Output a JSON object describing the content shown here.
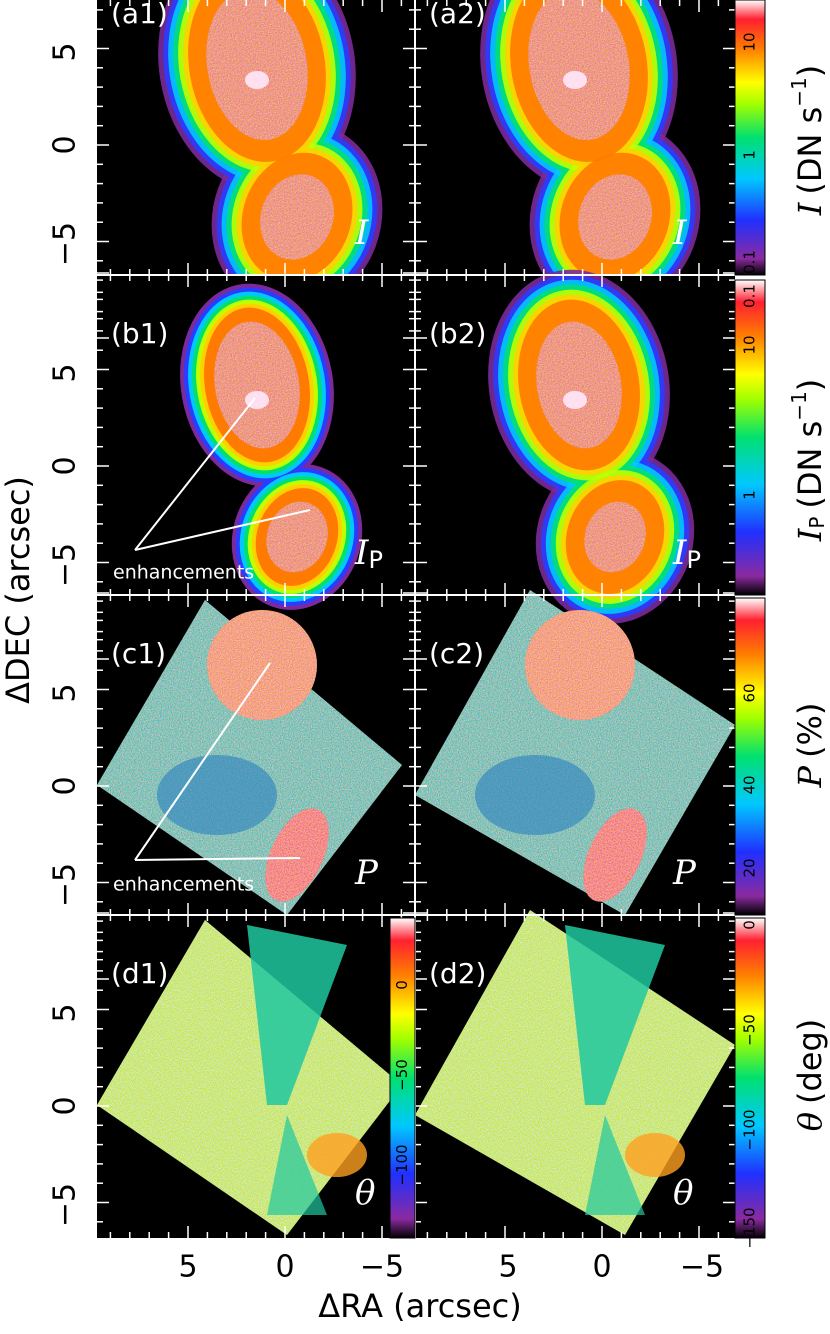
{
  "axes": {
    "x_label": "ΔRA (arcsec)",
    "y_label": "ΔDEC (arcsec)",
    "x_ticks": [
      "5",
      "0",
      "−5"
    ],
    "y_ticks": [
      "5",
      "0",
      "−5"
    ]
  },
  "panels": [
    {
      "label": "(a1)",
      "symbol": "I"
    },
    {
      "label": "(a2)",
      "symbol": "I"
    },
    {
      "label": "(b1)",
      "symbol": "I",
      "sub": "P"
    },
    {
      "label": "(b2)",
      "symbol": "I",
      "sub": "P"
    },
    {
      "label": "(c1)",
      "symbol": "P"
    },
    {
      "label": "(c2)",
      "symbol": "P"
    },
    {
      "label": "(d1)",
      "symbol": "θ"
    },
    {
      "label": "(d2)",
      "symbol": "θ"
    }
  ],
  "annotations": [
    "enhancements",
    "enhancements"
  ],
  "colorbars": [
    {
      "symbol": "I",
      "unit": "(DN s",
      "exp": "−1",
      "close": ")",
      "ticks": [
        "10",
        "1",
        "0.1"
      ]
    },
    {
      "symbol": "I",
      "sub": "P",
      "unit": "(DN s",
      "exp": "−1",
      "close": ")",
      "ticks": [
        "0.1",
        "10",
        "1"
      ]
    },
    {
      "symbol": "P",
      "unit": "(%)",
      "ticks": [
        "60",
        "40",
        "20"
      ]
    },
    {
      "symbol": "θ",
      "unit": "(deg)",
      "ticks": [
        "0",
        "−50",
        "−100",
        "−150"
      ]
    },
    {
      "ticks": [
        "0",
        "−50",
        "−100"
      ]
    }
  ]
}
